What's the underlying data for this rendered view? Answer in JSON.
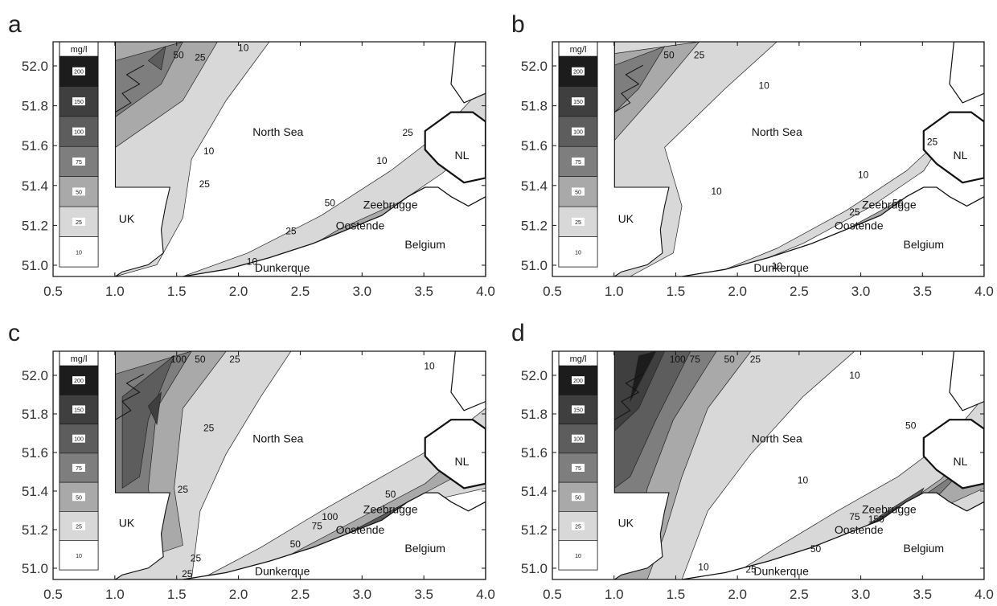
{
  "figure": {
    "unit_label": "mg/l",
    "legend_levels": [
      "200",
      "150",
      "100",
      "75",
      "50",
      "25",
      "10"
    ],
    "legend_colors": [
      "#1c1c1c",
      "#3f3f3f",
      "#5d5d5d",
      "#7e7e7e",
      "#a9a9a9",
      "#d8d8d8",
      "#ffffff"
    ],
    "land_color": "#ffffff",
    "x_ticks": [
      "0.5",
      "1.0",
      "1.5",
      "2.0",
      "2.5",
      "3.0",
      "3.5",
      "4.0"
    ],
    "y_ticks": [
      "51.0",
      "51.2",
      "51.4",
      "51.6",
      "51.8",
      "52.0"
    ],
    "place_labels": {
      "north_sea": "North Sea",
      "uk": "UK",
      "nl": "NL",
      "belgium": "Belgium",
      "zeebrugge": "Zeebrugge",
      "oostende": "Oostende",
      "dunkerque": "Dunkerque"
    }
  },
  "panels": [
    {
      "letter": "a",
      "contour_labels": [
        "50",
        "25",
        "10",
        "10",
        "10",
        "25",
        "25",
        "50",
        "25",
        "10"
      ]
    },
    {
      "letter": "b",
      "contour_labels": [
        "50",
        "25",
        "10",
        "10",
        "10",
        "25",
        "50",
        "25",
        "10"
      ]
    },
    {
      "letter": "c",
      "contour_labels": [
        "100",
        "50",
        "25",
        "25",
        "10",
        "25",
        "50",
        "100",
        "75",
        "50",
        "25",
        "25"
      ]
    },
    {
      "letter": "d",
      "contour_labels": [
        "100",
        "75",
        "50",
        "25",
        "10",
        "10",
        "50",
        "75",
        "150",
        "50",
        "25",
        "10"
      ]
    }
  ]
}
